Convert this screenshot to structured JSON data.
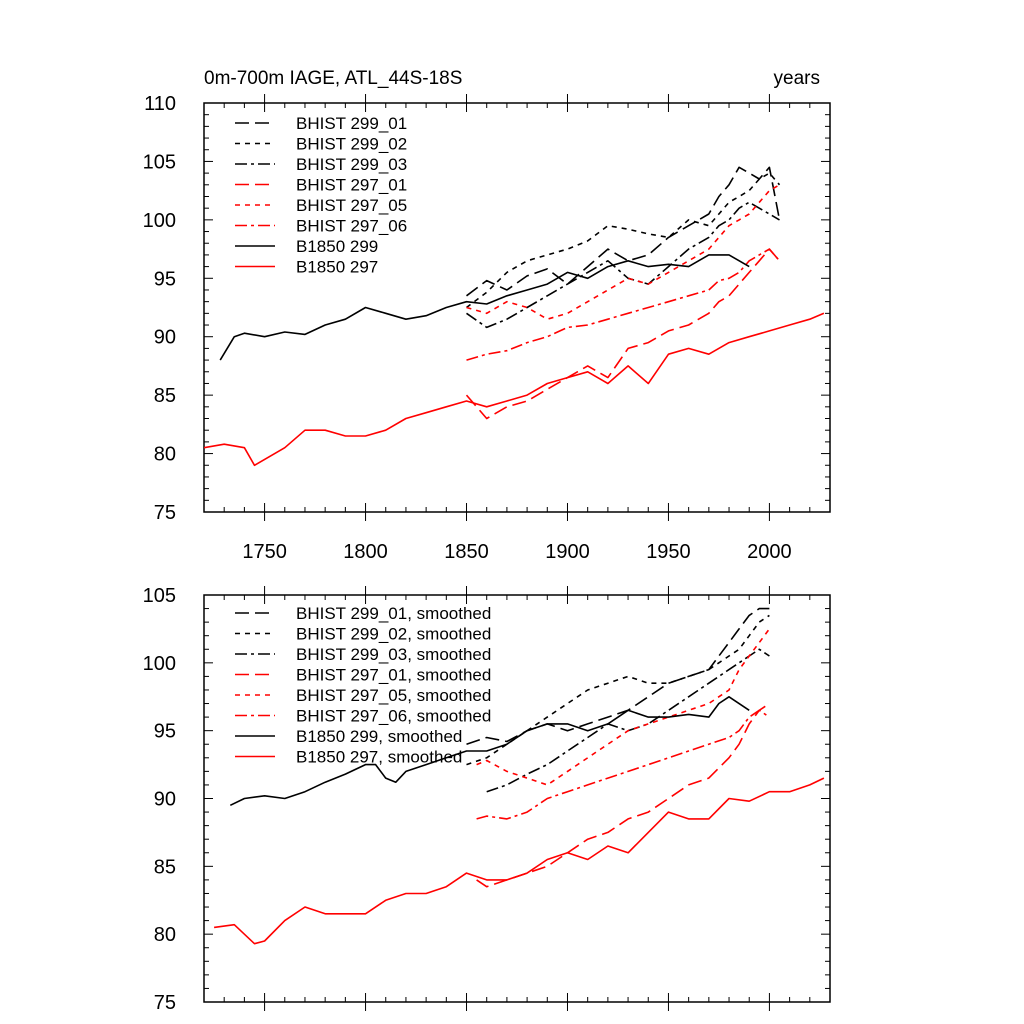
{
  "chart_data": [
    {
      "type": "line",
      "title": "0m-700m IAGE, ATL_44S-18S",
      "units": "years",
      "xlim": [
        1720,
        2030
      ],
      "ylim": [
        75,
        110
      ],
      "xticks": [
        1750,
        1800,
        1850,
        1900,
        1950,
        2000
      ],
      "yticks": [
        75,
        80,
        85,
        90,
        95,
        100,
        105,
        110
      ],
      "tick_labels_x": [
        "1750",
        "1800",
        "1850",
        "1900",
        "1950",
        "2000"
      ],
      "tick_labels_y": [
        "75",
        "80",
        "85",
        "90",
        "95",
        "100",
        "105",
        "110"
      ],
      "legend_position": "top-left",
      "series": [
        {
          "name": "BHIST 299_01",
          "color": "#000000",
          "dash": "dash",
          "x": [
            1850,
            1860,
            1870,
            1880,
            1890,
            1900,
            1910,
            1920,
            1930,
            1940,
            1950,
            1960,
            1970,
            1975,
            1980,
            1985,
            1990,
            1995,
            2000,
            2005
          ],
          "y": [
            93.5,
            94.8,
            94.0,
            95.2,
            95.8,
            94.5,
            96.0,
            97.5,
            96.5,
            97.0,
            98.5,
            99.5,
            100.5,
            102.0,
            103.0,
            104.5,
            104.0,
            103.5,
            104.5,
            100.0
          ]
        },
        {
          "name": "BHIST 299_02",
          "color": "#000000",
          "dash": "short",
          "x": [
            1850,
            1860,
            1870,
            1880,
            1890,
            1900,
            1910,
            1920,
            1930,
            1940,
            1950,
            1960,
            1970,
            1975,
            1980,
            1985,
            1990,
            1995,
            2000,
            2005
          ],
          "y": [
            92.5,
            93.8,
            95.5,
            96.5,
            97.0,
            97.5,
            98.2,
            99.5,
            99.2,
            98.8,
            98.5,
            100.0,
            99.5,
            100.5,
            101.5,
            102.0,
            102.5,
            103.5,
            104.0,
            103.0
          ]
        },
        {
          "name": "BHIST 299_03",
          "color": "#000000",
          "dash": "dashdot",
          "x": [
            1850,
            1860,
            1870,
            1880,
            1890,
            1900,
            1910,
            1920,
            1930,
            1940,
            1950,
            1960,
            1970,
            1975,
            1980,
            1985,
            1990,
            1995,
            2000,
            2005
          ],
          "y": [
            92.0,
            90.8,
            91.5,
            92.5,
            93.5,
            94.5,
            95.5,
            96.5,
            95.0,
            94.5,
            96.0,
            97.5,
            98.5,
            99.5,
            100.0,
            101.0,
            101.5,
            101.0,
            100.5,
            100.0
          ]
        },
        {
          "name": "BHIST 297_01",
          "color": "#ff0000",
          "dash": "dash",
          "x": [
            1850,
            1860,
            1870,
            1880,
            1890,
            1900,
            1910,
            1920,
            1930,
            1940,
            1950,
            1960,
            1970,
            1975,
            1980,
            1985,
            1990,
            1995,
            2000,
            2005
          ],
          "y": [
            85.0,
            83.0,
            84.0,
            84.5,
            85.5,
            86.5,
            87.5,
            86.5,
            89.0,
            89.5,
            90.5,
            91.0,
            92.0,
            93.0,
            93.5,
            94.5,
            95.5,
            96.5,
            97.5,
            96.5
          ]
        },
        {
          "name": "BHIST 297_05",
          "color": "#ff0000",
          "dash": "short",
          "x": [
            1850,
            1860,
            1870,
            1880,
            1890,
            1900,
            1910,
            1920,
            1930,
            1940,
            1950,
            1960,
            1970,
            1975,
            1980,
            1985,
            1990,
            1995,
            2000,
            2005
          ],
          "y": [
            92.5,
            92.0,
            93.0,
            92.5,
            91.5,
            92.0,
            93.0,
            94.0,
            95.0,
            94.5,
            95.5,
            96.5,
            97.5,
            98.5,
            99.5,
            100.0,
            100.5,
            101.5,
            102.5,
            103.0
          ]
        },
        {
          "name": "BHIST 297_06",
          "color": "#ff0000",
          "dash": "dashdot",
          "x": [
            1850,
            1860,
            1870,
            1880,
            1890,
            1900,
            1910,
            1920,
            1930,
            1940,
            1950,
            1960,
            1970,
            1975,
            1980,
            1985,
            1990,
            1995,
            2000,
            2005
          ],
          "y": [
            88.0,
            88.5,
            88.8,
            89.5,
            90.0,
            90.8,
            91.0,
            91.5,
            92.0,
            92.5,
            93.0,
            93.5,
            94.0,
            94.8,
            95.0,
            95.5,
            96.5,
            97.0,
            97.5,
            96.5
          ]
        },
        {
          "name": "B1850 299",
          "color": "#000000",
          "dash": "solid",
          "x": [
            1728,
            1735,
            1740,
            1750,
            1760,
            1770,
            1780,
            1790,
            1800,
            1810,
            1820,
            1830,
            1840,
            1850,
            1860,
            1870,
            1880,
            1890,
            1900,
            1910,
            1920,
            1930,
            1940,
            1950,
            1960,
            1970,
            1980,
            1990
          ],
          "y": [
            88.0,
            90.0,
            90.3,
            90.0,
            90.4,
            90.2,
            91.0,
            91.5,
            92.5,
            92.0,
            91.5,
            91.8,
            92.5,
            93.0,
            92.8,
            93.5,
            94.0,
            94.5,
            95.5,
            95.0,
            96.0,
            96.5,
            96.0,
            96.2,
            96.0,
            97.0,
            97.0,
            96.0
          ]
        },
        {
          "name": "B1850 297",
          "color": "#ff0000",
          "dash": "solid",
          "x": [
            1720,
            1730,
            1740,
            1745,
            1750,
            1760,
            1770,
            1780,
            1790,
            1800,
            1810,
            1820,
            1830,
            1840,
            1850,
            1860,
            1870,
            1880,
            1890,
            1900,
            1910,
            1920,
            1930,
            1940,
            1950,
            1960,
            1970,
            1980,
            1990,
            2000,
            2010,
            2020,
            2027
          ],
          "y": [
            80.5,
            80.8,
            80.5,
            79.0,
            79.5,
            80.5,
            82.0,
            82.0,
            81.5,
            81.5,
            82.0,
            83.0,
            83.5,
            84.0,
            84.5,
            84.0,
            84.5,
            85.0,
            86.0,
            86.5,
            87.0,
            86.0,
            87.5,
            86.0,
            88.5,
            89.0,
            88.5,
            89.5,
            90.0,
            90.5,
            91.0,
            91.5,
            92.0
          ]
        }
      ]
    },
    {
      "type": "line",
      "xlim": [
        1720,
        2030
      ],
      "ylim": [
        75,
        105
      ],
      "xticks": [
        1750,
        1800,
        1850,
        1900,
        1950,
        2000
      ],
      "yticks": [
        75,
        80,
        85,
        90,
        95,
        100,
        105
      ],
      "tick_labels_y": [
        "75",
        "80",
        "85",
        "90",
        "95",
        "100",
        "105"
      ],
      "legend_position": "top-left",
      "series": [
        {
          "name": "BHIST 299_01, smoothed",
          "color": "#000000",
          "dash": "dash",
          "x": [
            1850,
            1860,
            1870,
            1880,
            1890,
            1900,
            1910,
            1920,
            1930,
            1940,
            1950,
            1960,
            1970,
            1975,
            1980,
            1985,
            1990,
            1995,
            2000
          ],
          "y": [
            94.0,
            94.5,
            94.2,
            95.0,
            95.5,
            95.0,
            95.5,
            96.0,
            96.5,
            97.5,
            98.5,
            99.0,
            99.5,
            100.5,
            101.5,
            102.5,
            103.5,
            104.0,
            104.0
          ]
        },
        {
          "name": "BHIST 299_02, smoothed",
          "color": "#000000",
          "dash": "short",
          "x": [
            1850,
            1860,
            1870,
            1880,
            1890,
            1900,
            1910,
            1920,
            1930,
            1940,
            1950,
            1960,
            1970,
            1975,
            1980,
            1985,
            1990,
            1995,
            2000
          ],
          "y": [
            92.5,
            93.0,
            94.0,
            95.0,
            96.0,
            97.0,
            98.0,
            98.5,
            99.0,
            98.5,
            98.5,
            99.0,
            99.5,
            100.0,
            100.5,
            101.0,
            102.0,
            103.0,
            103.5
          ]
        },
        {
          "name": "BHIST 299_03, smoothed",
          "color": "#000000",
          "dash": "dashdot",
          "x": [
            1860,
            1870,
            1880,
            1890,
            1900,
            1910,
            1920,
            1930,
            1940,
            1950,
            1960,
            1970,
            1975,
            1980,
            1985,
            1990,
            1995,
            2000
          ],
          "y": [
            90.5,
            91.0,
            91.8,
            92.5,
            93.5,
            94.5,
            95.5,
            95.0,
            95.5,
            96.5,
            97.5,
            98.5,
            99.0,
            99.5,
            100.0,
            100.5,
            101.0,
            100.5
          ]
        },
        {
          "name": "BHIST 297_01, smoothed",
          "color": "#ff0000",
          "dash": "dash",
          "x": [
            1855,
            1860,
            1870,
            1880,
            1890,
            1900,
            1910,
            1920,
            1930,
            1940,
            1950,
            1960,
            1970,
            1980,
            1985,
            1990,
            1995,
            2000
          ],
          "y": [
            84.0,
            83.5,
            84.0,
            84.5,
            85.0,
            86.0,
            87.0,
            87.5,
            88.5,
            89.0,
            90.0,
            91.0,
            91.5,
            93.0,
            94.0,
            95.5,
            96.5,
            97.0
          ]
        },
        {
          "name": "BHIST 297_05, smoothed",
          "color": "#ff0000",
          "dash": "short",
          "x": [
            1855,
            1860,
            1870,
            1880,
            1890,
            1900,
            1910,
            1920,
            1930,
            1940,
            1950,
            1960,
            1970,
            1980,
            1985,
            1990,
            1995,
            2000
          ],
          "y": [
            92.5,
            92.8,
            92.0,
            91.5,
            91.0,
            92.0,
            93.0,
            94.0,
            95.0,
            95.5,
            96.0,
            96.5,
            97.0,
            98.0,
            99.5,
            100.5,
            101.5,
            102.5
          ]
        },
        {
          "name": "BHIST 297_06, smoothed",
          "color": "#ff0000",
          "dash": "dashdot",
          "x": [
            1855,
            1860,
            1870,
            1880,
            1890,
            1900,
            1910,
            1920,
            1930,
            1940,
            1950,
            1960,
            1970,
            1980,
            1985,
            1990,
            1995,
            2000
          ],
          "y": [
            88.5,
            88.7,
            88.5,
            89.0,
            90.0,
            90.5,
            91.0,
            91.5,
            92.0,
            92.5,
            93.0,
            93.5,
            94.0,
            94.5,
            95.0,
            96.0,
            96.5,
            96.0
          ]
        },
        {
          "name": "B1850 299, smoothed",
          "color": "#000000",
          "dash": "solid",
          "x": [
            1733,
            1740,
            1750,
            1760,
            1770,
            1780,
            1790,
            1800,
            1805,
            1810,
            1815,
            1820,
            1830,
            1840,
            1850,
            1860,
            1870,
            1880,
            1890,
            1900,
            1910,
            1920,
            1930,
            1940,
            1950,
            1960,
            1970,
            1975,
            1980,
            1990
          ],
          "y": [
            89.5,
            90.0,
            90.2,
            90.0,
            90.5,
            91.2,
            91.8,
            92.5,
            92.5,
            91.5,
            91.2,
            92.0,
            92.5,
            93.0,
            93.5,
            93.5,
            94.0,
            95.0,
            95.5,
            95.5,
            95.0,
            95.5,
            96.5,
            96.0,
            96.0,
            96.2,
            96.0,
            97.0,
            97.5,
            96.5
          ]
        },
        {
          "name": "B1850 297, smoothed",
          "color": "#ff0000",
          "dash": "solid",
          "x": [
            1725,
            1735,
            1745,
            1750,
            1760,
            1770,
            1780,
            1790,
            1800,
            1810,
            1820,
            1830,
            1840,
            1850,
            1860,
            1870,
            1880,
            1890,
            1900,
            1910,
            1920,
            1930,
            1940,
            1950,
            1960,
            1970,
            1980,
            1990,
            2000,
            2010,
            2020,
            2027
          ],
          "y": [
            80.5,
            80.7,
            79.3,
            79.5,
            81.0,
            82.0,
            81.5,
            81.5,
            81.5,
            82.5,
            83.0,
            83.0,
            83.5,
            84.5,
            84.0,
            84.0,
            84.5,
            85.5,
            86.0,
            85.5,
            86.5,
            86.0,
            87.5,
            89.0,
            88.5,
            88.5,
            90.0,
            89.8,
            90.5,
            90.5,
            91.0,
            91.5
          ]
        }
      ]
    }
  ]
}
